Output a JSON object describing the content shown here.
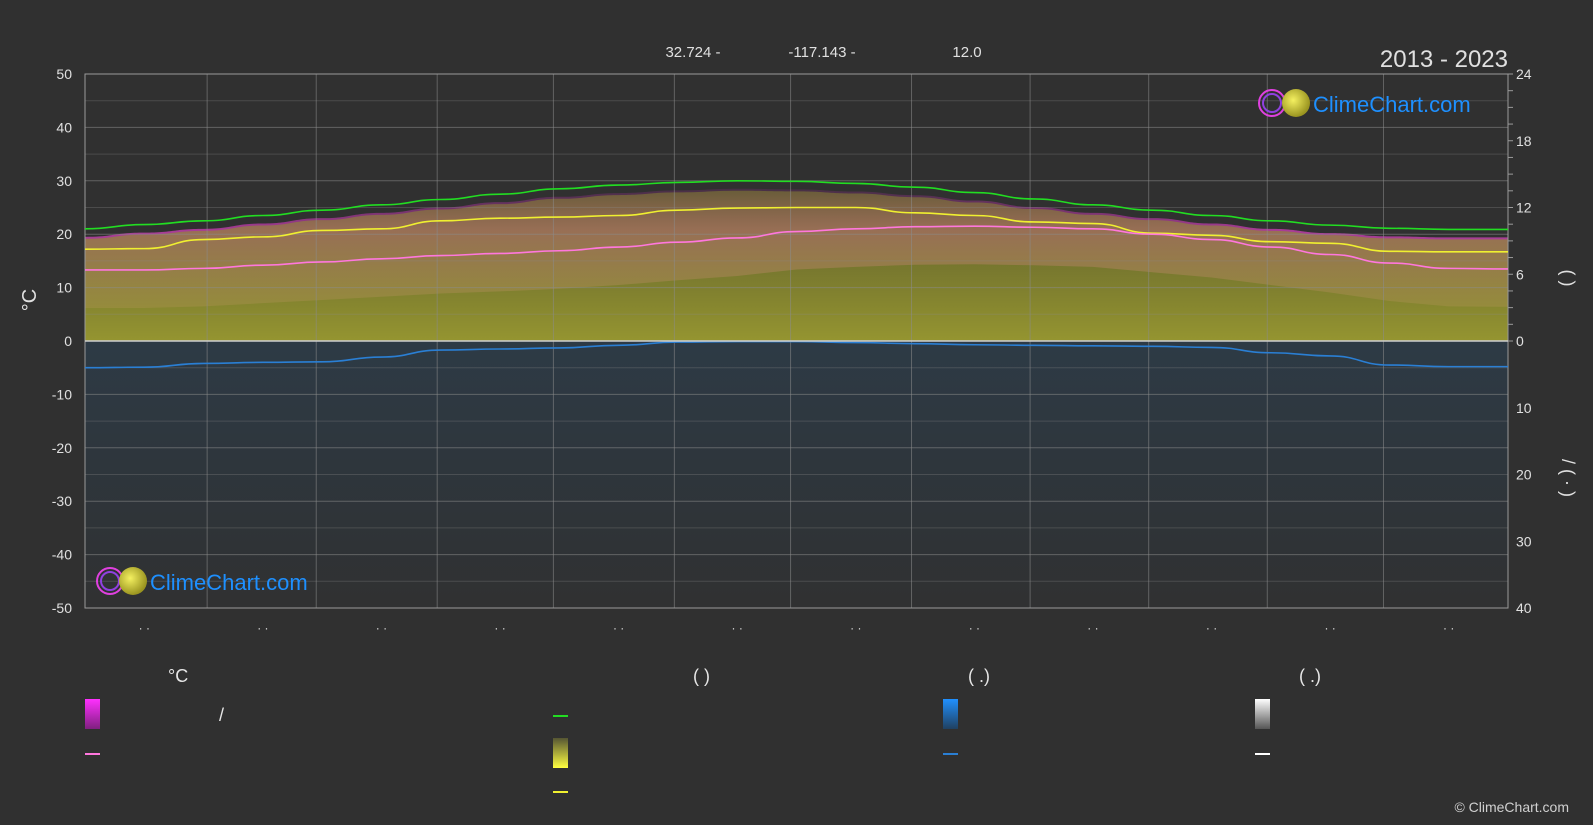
{
  "header": {
    "lat": "32.724 -",
    "lon": "-117.143 -",
    "elev": "12.0",
    "period": "2013 - 2023"
  },
  "brand": {
    "name": "ClimeChart.com",
    "copyright": "© ClimeChart.com",
    "color": "#1e90ff"
  },
  "axes": {
    "left_label": "°C",
    "right_top_label": "(        )",
    "right_bottom_label": "/        (  ·  )"
  },
  "month_labels": [
    "· ·",
    "· ·",
    "· ·",
    "· ·",
    "· ·",
    "· ·",
    "· ·",
    "· ·",
    "· ·",
    "· ·",
    "· ·",
    "· ·"
  ],
  "legend": {
    "col1": {
      "title": "°C",
      "item1": "/"
    },
    "col2": {
      "title": "(           )"
    },
    "col3": {
      "title": "(    .)"
    },
    "col4": {
      "title": "(    .)"
    }
  },
  "chart_data": {
    "type": "line",
    "y_left": {
      "min": -50,
      "max": 50,
      "ticks": [
        50,
        40,
        30,
        20,
        10,
        0,
        -10,
        -20,
        -30,
        -40,
        -50
      ]
    },
    "y_right_top": {
      "min": 0,
      "max": 24,
      "ticks": [
        24,
        18,
        12,
        6,
        0
      ]
    },
    "y_right_bottom": {
      "min": 0,
      "max": 40,
      "ticks": [
        0,
        10,
        20,
        30,
        40
      ]
    },
    "x": [
      0,
      0.5,
      1,
      1.5,
      2,
      2.5,
      3,
      3.5,
      4,
      4.5,
      5,
      5.5,
      6,
      6.5,
      7,
      7.5,
      8,
      8.5,
      9,
      9.5,
      10,
      10.5,
      11,
      11.5,
      12
    ],
    "series": [
      {
        "color": "#22dd22",
        "values": [
          21,
          21.8,
          22.5,
          23.5,
          24.5,
          25.5,
          26.5,
          27.5,
          28.5,
          29.2,
          29.7,
          30,
          29.9,
          29.5,
          28.8,
          27.8,
          26.6,
          25.5,
          24.5,
          23.5,
          22.5,
          21.7,
          21.1,
          20.9,
          20.9
        ]
      },
      {
        "color": "#f0f030",
        "values": [
          17.2,
          17.3,
          19,
          19.5,
          20.7,
          21,
          22.5,
          23,
          23.2,
          23.5,
          24.5,
          24.9,
          25,
          25,
          24,
          23.5,
          22.3,
          22,
          20.2,
          19.8,
          18.6,
          18.3,
          16.8,
          16.7,
          16.7
        ]
      },
      {
        "color": "#ff77dd",
        "values": [
          13.3,
          13.3,
          13.6,
          14.2,
          14.8,
          15.4,
          16,
          16.4,
          16.9,
          17.6,
          18.5,
          19.3,
          20.5,
          21,
          21.4,
          21.5,
          21.3,
          21,
          20,
          19,
          17.6,
          16.2,
          14.6,
          13.6,
          13.5
        ]
      },
      {
        "color": "#2a7fd4",
        "values": [
          -5,
          -4.9,
          -4.2,
          -4,
          -3.9,
          -3,
          -1.7,
          -1.5,
          -1.3,
          -0.8,
          -0.2,
          -0.1,
          -0.1,
          -0.3,
          -0.5,
          -0.7,
          -0.8,
          -0.9,
          -1,
          -1.2,
          -2.2,
          -2.8,
          -4.5,
          -4.8,
          -4.8
        ]
      }
    ]
  }
}
